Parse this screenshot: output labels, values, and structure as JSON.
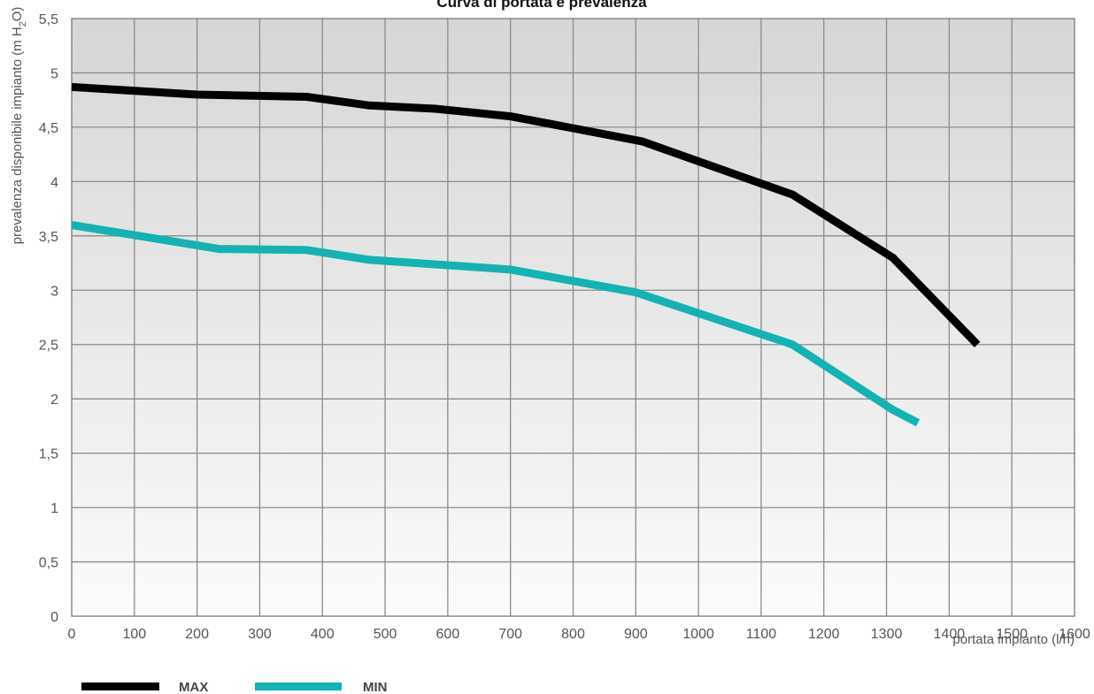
{
  "chart_data": {
    "type": "line",
    "title": "Curva di portata e prevalenza",
    "xlabel": "portata impianto (l/h)",
    "ylabel": "prevalenza disponibile impianto (m H2O)",
    "ylabel_parts": {
      "main": "prevalenza disponibile impianto (m H",
      "sub": "2",
      "end": "O)"
    },
    "xlim": [
      0,
      1600
    ],
    "ylim": [
      0,
      5.5
    ],
    "x_ticks": [
      0,
      100,
      200,
      300,
      400,
      500,
      600,
      700,
      800,
      900,
      1000,
      1100,
      1200,
      1300,
      1400,
      1500,
      1600
    ],
    "x_tick_labels": [
      "0",
      "100",
      "200",
      "300",
      "400",
      "500",
      "600",
      "700",
      "800",
      "900",
      "1000",
      "1100",
      "1200",
      "1300",
      "1400",
      "1500",
      "1600"
    ],
    "y_ticks": [
      0,
      0.5,
      1,
      1.5,
      2,
      2.5,
      3,
      3.5,
      4,
      4.5,
      5,
      5.5
    ],
    "y_tick_labels": [
      "0",
      "0,5",
      "1",
      "1,5",
      "2",
      "2,5",
      "3",
      "3,5",
      "4",
      "4,5",
      "5",
      "5,5"
    ],
    "grid": true,
    "legend_position": "bottom-left",
    "series": [
      {
        "name": "MAX",
        "color": "#000000",
        "x": [
          0,
          200,
          375,
          475,
          580,
          700,
          910,
          1150,
          1310,
          1445
        ],
        "y": [
          4.87,
          4.8,
          4.78,
          4.7,
          4.67,
          4.6,
          4.37,
          3.88,
          3.3,
          2.5
        ]
      },
      {
        "name": "MIN",
        "color": "#13b3b3",
        "x": [
          0,
          235,
          375,
          475,
          700,
          900,
          1150,
          1310,
          1350
        ],
        "y": [
          3.6,
          3.38,
          3.37,
          3.28,
          3.19,
          2.98,
          2.5,
          1.9,
          1.78
        ]
      }
    ]
  }
}
